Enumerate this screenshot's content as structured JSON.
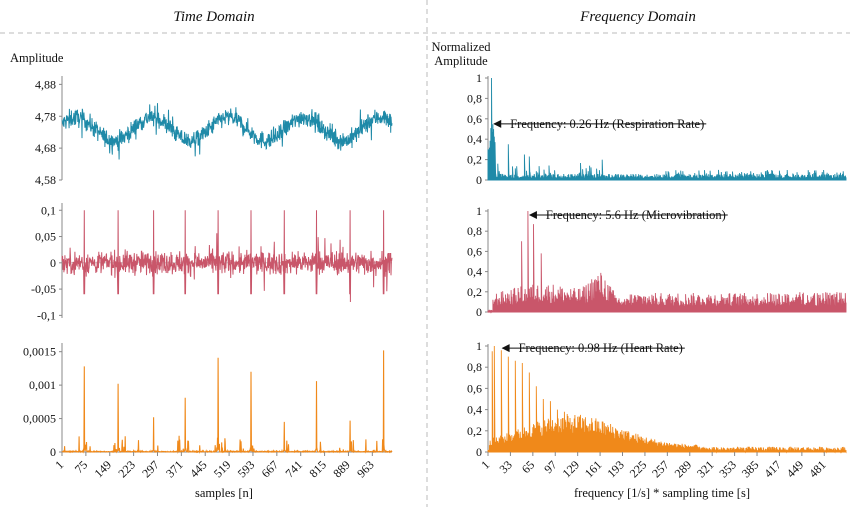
{
  "headers": {
    "left": "Time Domain",
    "right": "Frequency Domain"
  },
  "time_domain": {
    "ylabel": "Amplitude",
    "xlabel": "samples [n]",
    "xticks": [
      "1",
      "75",
      "149",
      "223",
      "297",
      "371",
      "445",
      "519",
      "593",
      "667",
      "741",
      "815",
      "889",
      "963"
    ]
  },
  "frequency_domain": {
    "ylabel_lines": [
      "Normalized",
      "Amplitude"
    ],
    "xlabel": "frequency [1/s] * sampling time [s]",
    "xticks": [
      "1",
      "33",
      "65",
      "97",
      "129",
      "161",
      "193",
      "225",
      "257",
      "289",
      "321",
      "353",
      "385",
      "417",
      "449",
      "481"
    ]
  },
  "colors": {
    "respiration": "#1f8aa8",
    "microvibration": "#c9566a",
    "heart": "#f0891a"
  },
  "chart_data": [
    {
      "type": "line",
      "panel": "time-respiration",
      "color": "#1f8aa8",
      "x_range": [
        1,
        1024
      ],
      "ylim": [
        4.58,
        4.9
      ],
      "yticks": [
        "4,88",
        "4,78",
        "4,68",
        "4,58"
      ],
      "ytick_values": [
        4.88,
        4.78,
        4.68,
        4.58
      ],
      "description_values": {
        "baseline": 4.74,
        "min": 4.61,
        "max": 4.89
      }
    },
    {
      "type": "line",
      "panel": "time-microvibration",
      "color": "#c9566a",
      "x_range": [
        1,
        1024
      ],
      "ylim": [
        -0.105,
        0.11
      ],
      "yticks": [
        "0,1",
        "0,05",
        "0",
        "-0,05",
        "-0,1"
      ],
      "ytick_values": [
        0.1,
        0.05,
        0,
        -0.05,
        -0.1
      ]
    },
    {
      "type": "line",
      "panel": "time-heart",
      "color": "#f0891a",
      "x_range": [
        1,
        1024
      ],
      "ylim": [
        0,
        0.0016
      ],
      "yticks": [
        "0,0015",
        "0,001",
        "0,0005",
        "0"
      ],
      "ytick_values": [
        0.0015,
        0.001,
        0.0005,
        0
      ],
      "peaks": [
        {
          "x": 70,
          "y": 0.00128
        },
        {
          "x": 175,
          "y": 0.00102
        },
        {
          "x": 285,
          "y": 0.00052
        },
        {
          "x": 383,
          "y": 0.00081
        },
        {
          "x": 485,
          "y": 0.00141
        },
        {
          "x": 587,
          "y": 0.0012
        },
        {
          "x": 690,
          "y": 0.00045
        },
        {
          "x": 790,
          "y": 0.00106
        },
        {
          "x": 894,
          "y": 0.00047
        },
        {
          "x": 998,
          "y": 0.00152
        }
      ]
    },
    {
      "type": "bar",
      "panel": "freq-respiration",
      "color": "#1f8aa8",
      "x_range": [
        1,
        512
      ],
      "ylim": [
        0,
        1
      ],
      "yticks": [
        "1",
        "0,8",
        "0,6",
        "0,4",
        "0,2",
        "0"
      ],
      "ytick_values": [
        1,
        0.8,
        0.6,
        0.4,
        0.2,
        0
      ],
      "annotation": {
        "text": "Frequency: 0.26 Hz (Respiration Rate)",
        "x": 7,
        "y": 0.55
      },
      "peak": {
        "x": 6,
        "y": 1.0
      }
    },
    {
      "type": "bar",
      "panel": "freq-microvibration",
      "color": "#c9566a",
      "x_range": [
        1,
        512
      ],
      "ylim": [
        0,
        1
      ],
      "yticks": [
        "1",
        "0,8",
        "0,6",
        "0,4",
        "0,2",
        "0"
      ],
      "ytick_values": [
        1,
        0.8,
        0.6,
        0.4,
        0.2,
        0
      ],
      "annotation": {
        "text": "Frequency: 5.6 Hz (Microvibration)",
        "x": 58,
        "y": 0.96
      },
      "peak": {
        "x": 58,
        "y": 1.0
      }
    },
    {
      "type": "bar",
      "panel": "freq-heart",
      "color": "#f0891a",
      "x_range": [
        1,
        512
      ],
      "ylim": [
        0,
        1
      ],
      "yticks": [
        "1",
        "0,8",
        "0,6",
        "0,4",
        "0,2",
        "0"
      ],
      "ytick_values": [
        1,
        0.8,
        0.6,
        0.4,
        0.2,
        0
      ],
      "annotation": {
        "text": "Frequency: 0.98 Hz (Heart Rate)",
        "x": 19,
        "y": 0.98
      },
      "peak": {
        "x": 20,
        "y": 1.0
      }
    }
  ]
}
